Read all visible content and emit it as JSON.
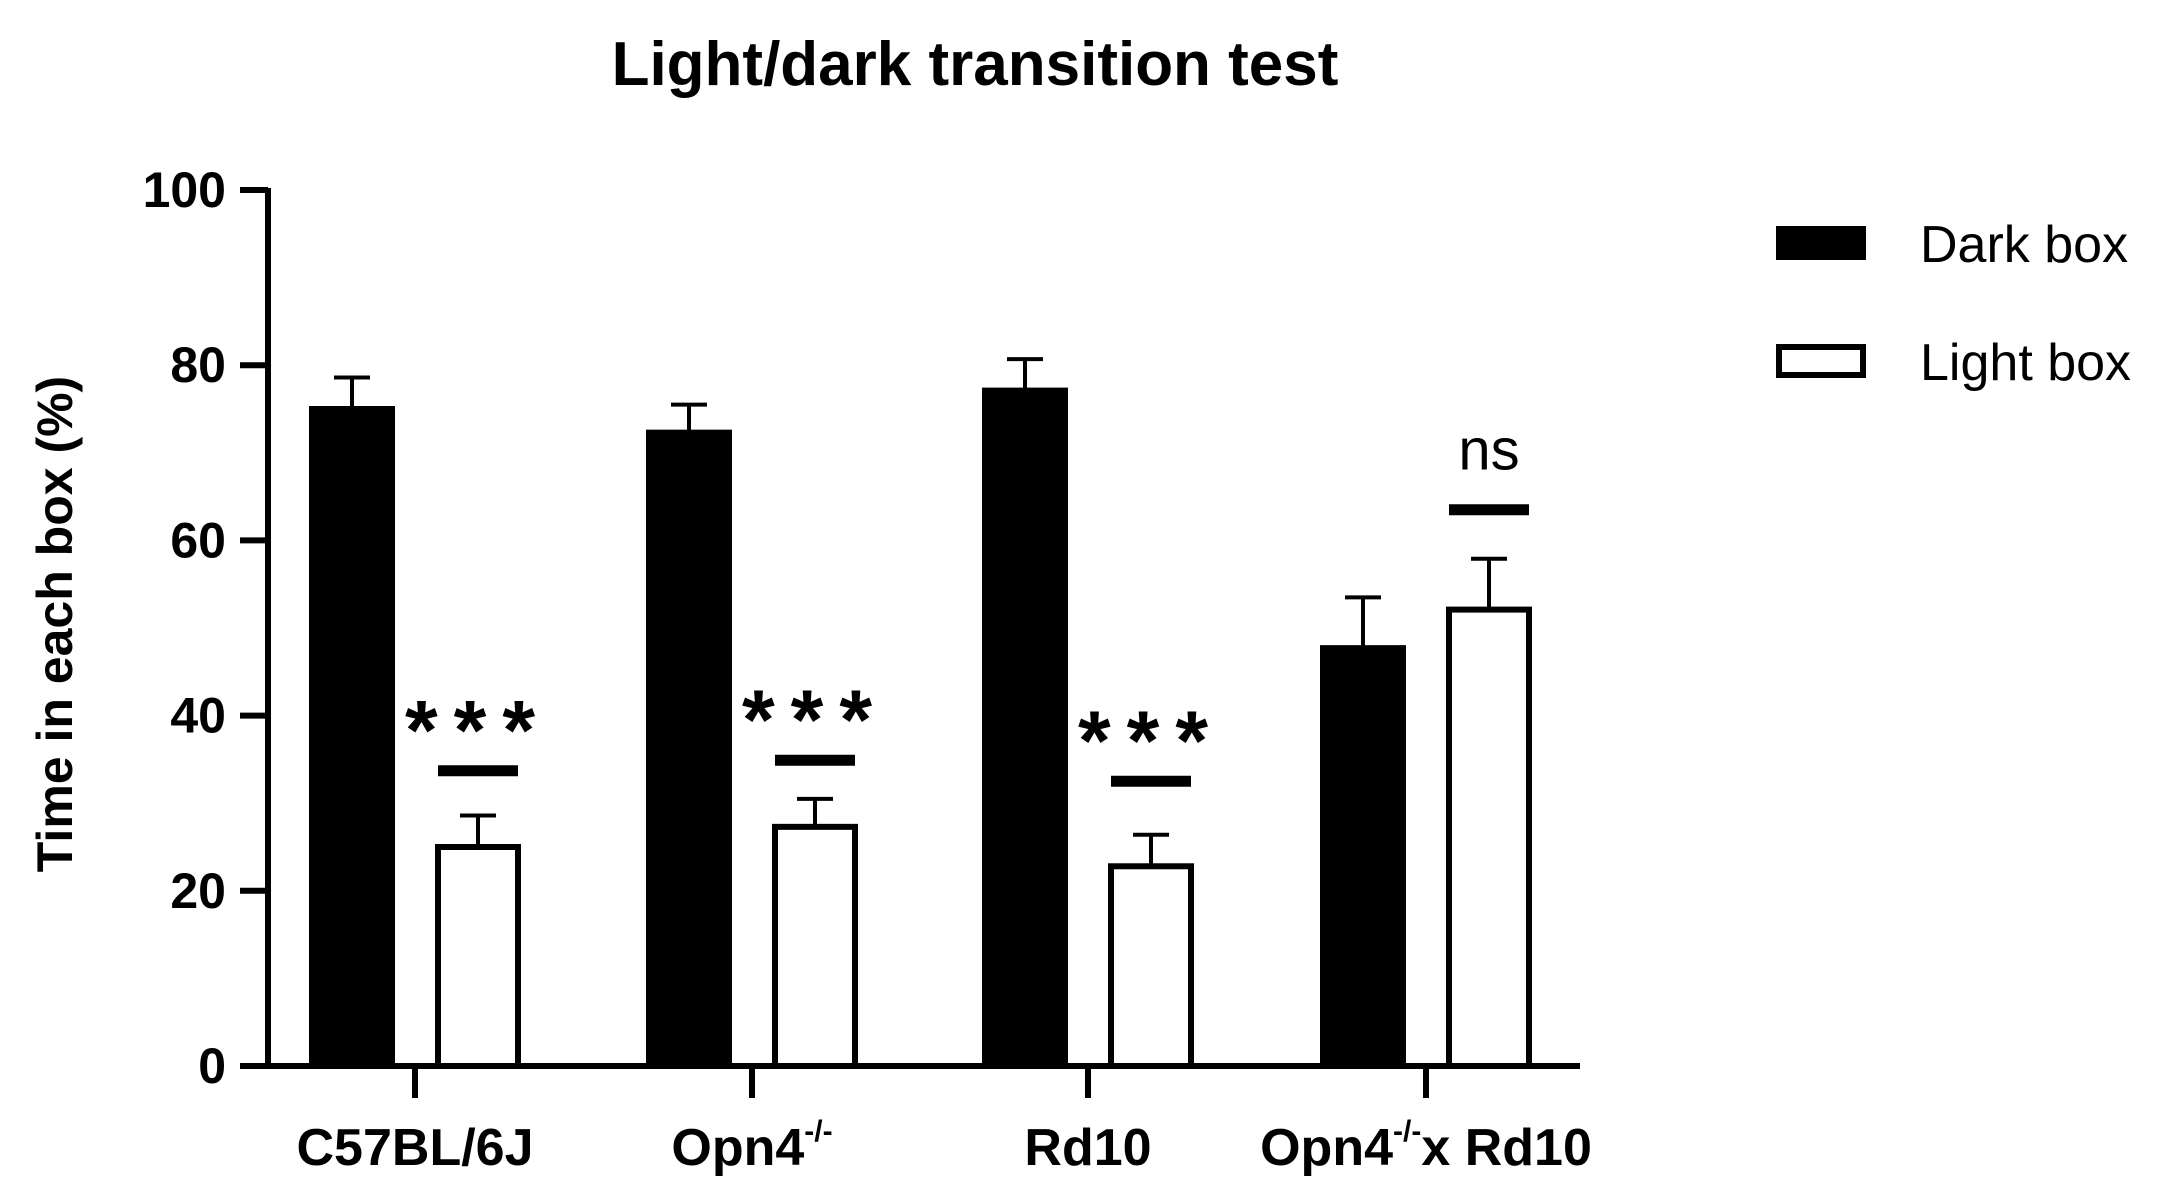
{
  "chart_data": {
    "type": "bar",
    "title": "Light/dark transition test",
    "ylabel": "Time in each box (%)",
    "xlabel": "",
    "ylim": [
      0,
      100
    ],
    "yticks": [
      0,
      20,
      40,
      60,
      80,
      100
    ],
    "categories": [
      {
        "base": "C57BL/6J",
        "sup": "",
        "suffix": ""
      },
      {
        "base": "Opn4",
        "sup": "-/-",
        "suffix": ""
      },
      {
        "base": "Rd10",
        "sup": "",
        "suffix": ""
      },
      {
        "base": "Opn4",
        "sup": "-/-",
        "suffix": "x Rd10"
      }
    ],
    "series": [
      {
        "name": "Dark box",
        "color": "#000000",
        "fill": "#000000",
        "values": [
          75,
          72.3,
          77.1,
          47.7
        ],
        "errors": [
          3.6,
          3.2,
          3.6,
          5.8
        ]
      },
      {
        "name": "Light box",
        "color": "#000000",
        "fill": "#ffffff",
        "values": [
          25,
          27.3,
          22.8,
          52.1
        ],
        "errors": [
          3.6,
          3.2,
          3.6,
          5.8
        ]
      }
    ],
    "significance": [
      "***",
      "***",
      "***",
      "ns"
    ],
    "significance_bar_y": [
      33.7,
      34.9,
      32.5,
      63.5
    ],
    "legend_position": "right",
    "grid": false
  }
}
